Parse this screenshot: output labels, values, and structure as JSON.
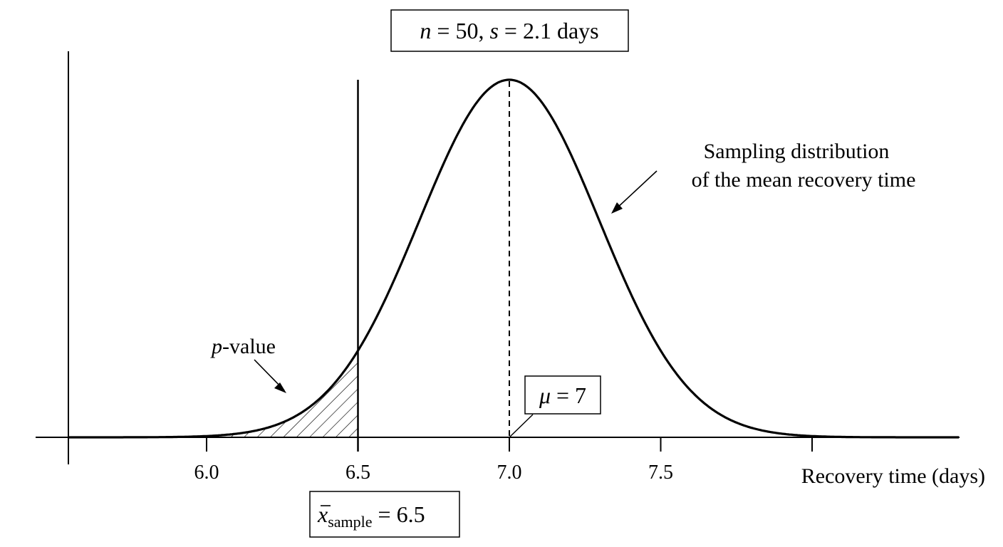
{
  "chart_data": {
    "type": "area",
    "xlabel": "Recovery time (days)",
    "ylabel": "",
    "x_ticks": [
      6.0,
      6.5,
      7.0,
      7.5
    ],
    "x_tick_labels": [
      "6.0",
      "6.5",
      "7.0",
      "7.5"
    ],
    "xlim": [
      5.55,
      8.0
    ],
    "distribution": {
      "family": "normal",
      "mean": 7.0,
      "sd": 0.297
    },
    "sample_mean": 6.5,
    "shaded_region": {
      "from": 5.55,
      "to": 6.5,
      "pattern": "hatched"
    },
    "annotations": {
      "params_box": {
        "n_var": "n",
        "n_eq": " = 50, ",
        "s_var": "s",
        "s_eq": " = 2.1 days"
      },
      "mu_box": {
        "symbol": "μ",
        "text": " = 7"
      },
      "xbar_box": {
        "symbol": "x",
        "subscript": "sample",
        "text": " = 6.5"
      },
      "pvalue": {
        "p": "p",
        "rest": "-value"
      },
      "curve_label_line1": "Sampling distribution",
      "curve_label_line2": "of the mean recovery time"
    },
    "colors": {
      "line": "#000000",
      "background": "#ffffff"
    }
  }
}
